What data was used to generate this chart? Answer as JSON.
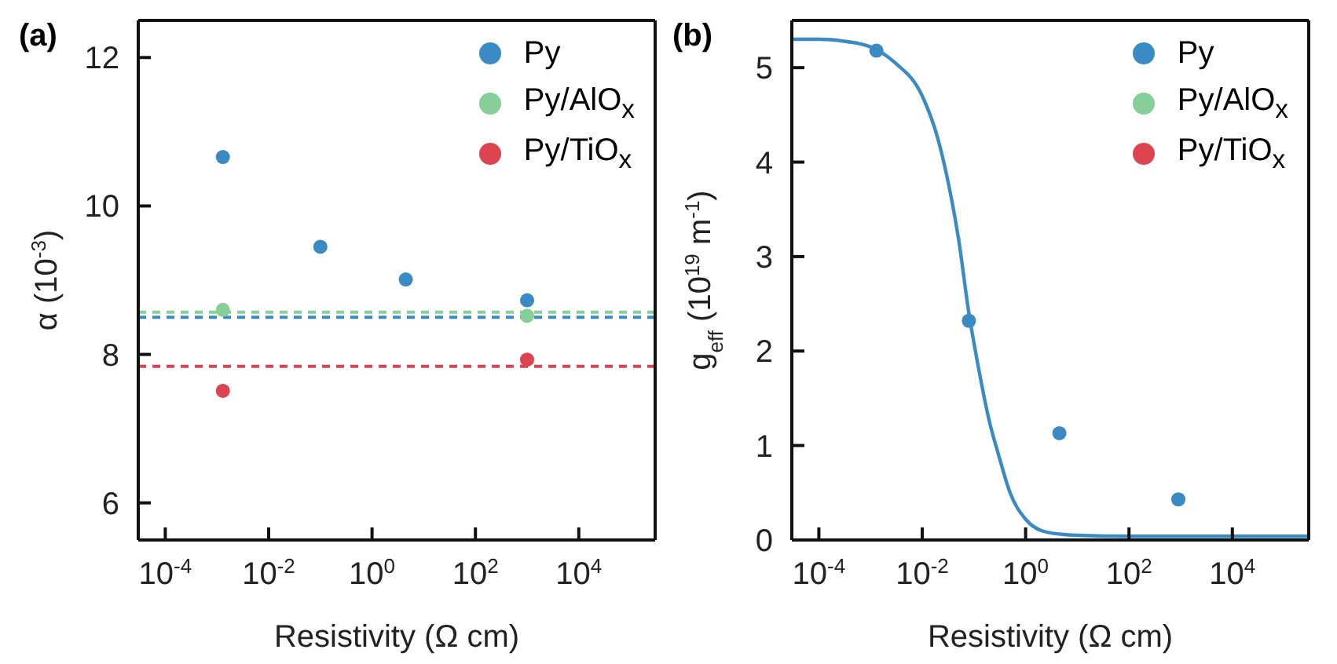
{
  "chart_data": [
    {
      "type": "scatter",
      "annotations": [
        "(a)"
      ],
      "xlabel": "Resistivity (Ω cm)",
      "ylabel": "α (10$^{-3}$)",
      "log": "x",
      "xlim": [
        3e-05,
        300000
      ],
      "xticks": [
        {
          "value": 0.0001,
          "label": "10$^{-4}$"
        },
        {
          "value": 0.01,
          "label": "10$^{-2}$"
        },
        {
          "value": 1,
          "label": "10$^{0}$"
        },
        {
          "value": 100,
          "label": "10$^{2}$"
        },
        {
          "value": 10000,
          "label": "10$^{4}$"
        }
      ],
      "ylim": [
        5.5,
        12.5
      ],
      "yticks": [
        6,
        8,
        10,
        12
      ],
      "legend": "top right",
      "series": [
        {
          "name": "Py",
          "color": "#3a8bc4",
          "marker": "circle",
          "x": [
            0.0013,
            0.1,
            4.5,
            1000
          ],
          "values": [
            10.66,
            9.45,
            9.01,
            8.73
          ]
        },
        {
          "name": "Py/AlO$_{x}$",
          "color": "#86cf98",
          "marker": "circle",
          "x": [
            0.0013,
            1000
          ],
          "values": [
            8.6,
            8.52
          ]
        },
        {
          "name": "Py/TiO$_{x}$",
          "color": "#dc4450",
          "marker": "circle",
          "x": [
            0.0013,
            1000
          ],
          "values": [
            7.51,
            7.93
          ]
        }
      ],
      "ref_lines": [
        {
          "axis": "y",
          "value": 8.57,
          "color": "#86cf98",
          "line_style": "dashed"
        },
        {
          "axis": "y",
          "value": 8.5,
          "color": "#3a8bc4",
          "line_style": "dashed"
        },
        {
          "axis": "y",
          "value": 7.84,
          "color": "#dc4450",
          "line_style": "dashed"
        }
      ]
    },
    {
      "type": "scatter",
      "annotations": [
        "(b)"
      ],
      "xlabel": "Resistivity (Ω cm)",
      "ylabel": "g$_{eff}$ (10$^{19}$ m$^{-1}$)",
      "log": "x",
      "xlim": [
        3e-05,
        300000
      ],
      "xticks": [
        {
          "value": 0.0001,
          "label": "10$^{-4}$"
        },
        {
          "value": 0.01,
          "label": "10$^{-2}$"
        },
        {
          "value": 1,
          "label": "10$^{0}$"
        },
        {
          "value": 100,
          "label": "10$^{2}$"
        },
        {
          "value": 10000,
          "label": "10$^{4}$"
        }
      ],
      "ylim": [
        0,
        5.5
      ],
      "yticks": [
        0,
        1,
        2,
        3,
        4,
        5
      ],
      "legend": "top right",
      "series": [
        {
          "name": "Py",
          "color": "#3a8bc4",
          "marker": "circle",
          "x": [
            0.0013,
            0.08,
            4.5,
            900
          ],
          "values": [
            5.18,
            2.32,
            1.13,
            0.43
          ]
        },
        {
          "name": "Py/AlO$_{x}$",
          "color": "#86cf98",
          "marker": "circle"
        },
        {
          "name": "Py/TiO$_{x}$",
          "color": "#dc4450",
          "marker": "circle"
        },
        {
          "type": "line",
          "color": "#3a8bc4",
          "line_style": "solid",
          "marker": "none",
          "x": [
            3e-05,
            0.0001,
            0.0003,
            0.001,
            0.003,
            0.01,
            0.02,
            0.03,
            0.05,
            0.08,
            0.12,
            0.2,
            0.3,
            0.5,
            1,
            2,
            5,
            10,
            100,
            300000
          ],
          "values": [
            5.3,
            5.3,
            5.28,
            5.22,
            5.05,
            4.7,
            4.25,
            3.85,
            3.2,
            2.4,
            1.85,
            1.25,
            0.9,
            0.5,
            0.22,
            0.1,
            0.06,
            0.05,
            0.04,
            0.04
          ]
        }
      ]
    }
  ]
}
